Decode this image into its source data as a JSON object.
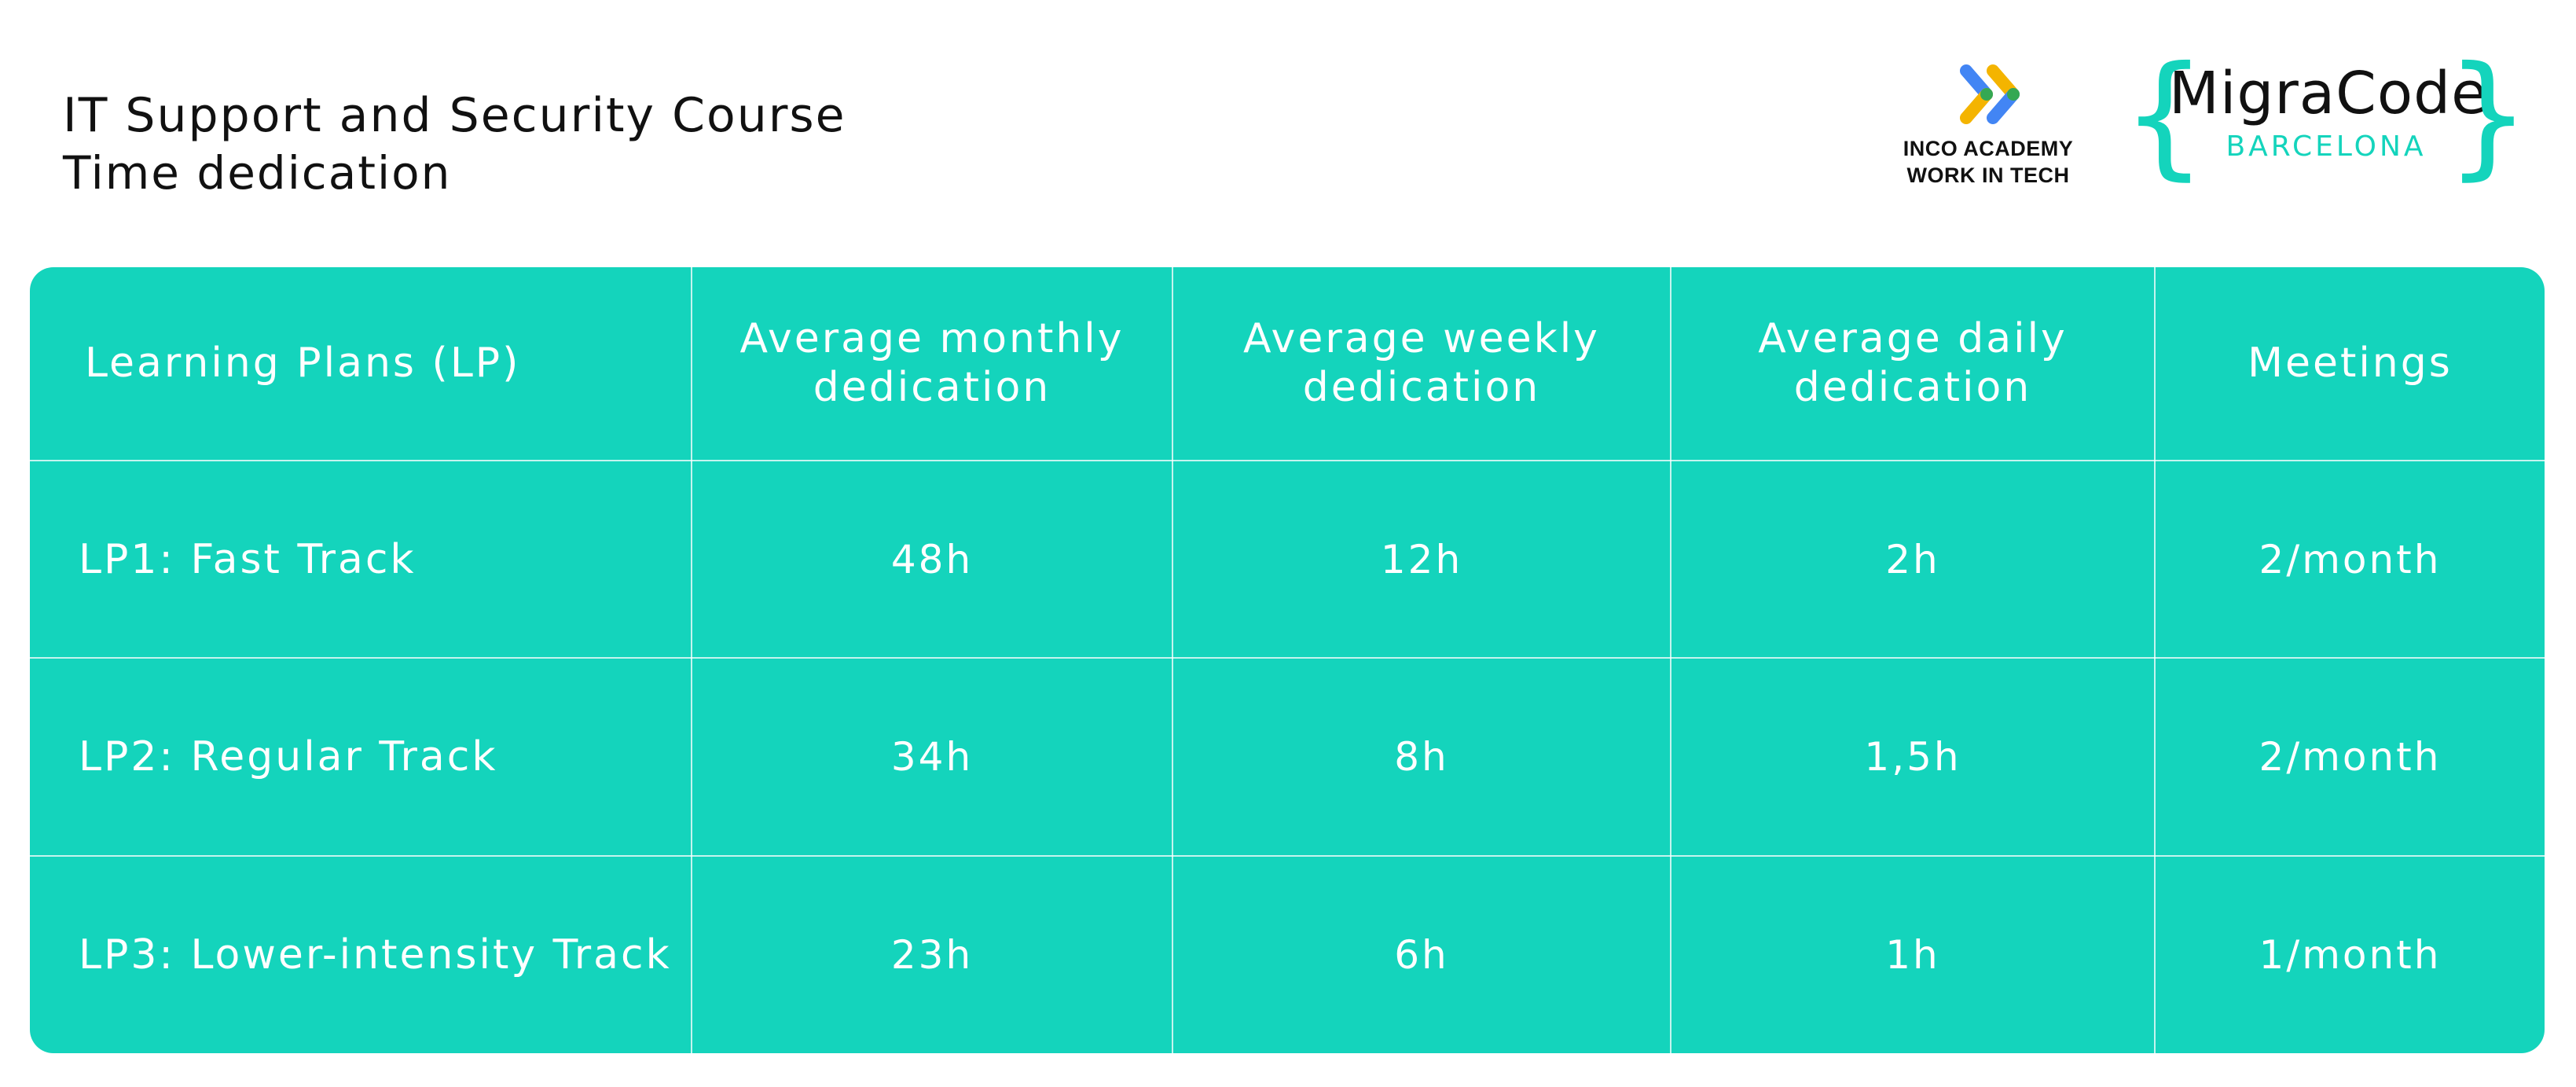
{
  "header": {
    "title": "IT Support and Security Course",
    "subtitle": "Time dedication"
  },
  "logos": {
    "inco": {
      "line1": "INCO ACADEMY",
      "line2": "WORK IN TECH",
      "icon": "inco-chevrons-icon",
      "colors": [
        "#f4b400",
        "#4285f4",
        "#34a853"
      ]
    },
    "migracode": {
      "name": "MigraCode",
      "city": "BARCELONA",
      "brace_left": "{",
      "brace_right": "}",
      "accent": "#14d4bc"
    }
  },
  "table": {
    "background": "#14d4bc",
    "headers": [
      "Learning Plans (LP)",
      "Average monthly dedication",
      "Average weekly dedication",
      "Average daily dedication",
      "Meetings"
    ],
    "rows": [
      [
        "LP1: Fast Track",
        "48h",
        "12h",
        "2h",
        "2/month"
      ],
      [
        "LP2: Regular Track",
        "34h",
        "8h",
        "1,5h",
        "2/month"
      ],
      [
        "LP3: Lower-intensity Track",
        "23h",
        "6h",
        "1h",
        "1/month"
      ]
    ]
  }
}
